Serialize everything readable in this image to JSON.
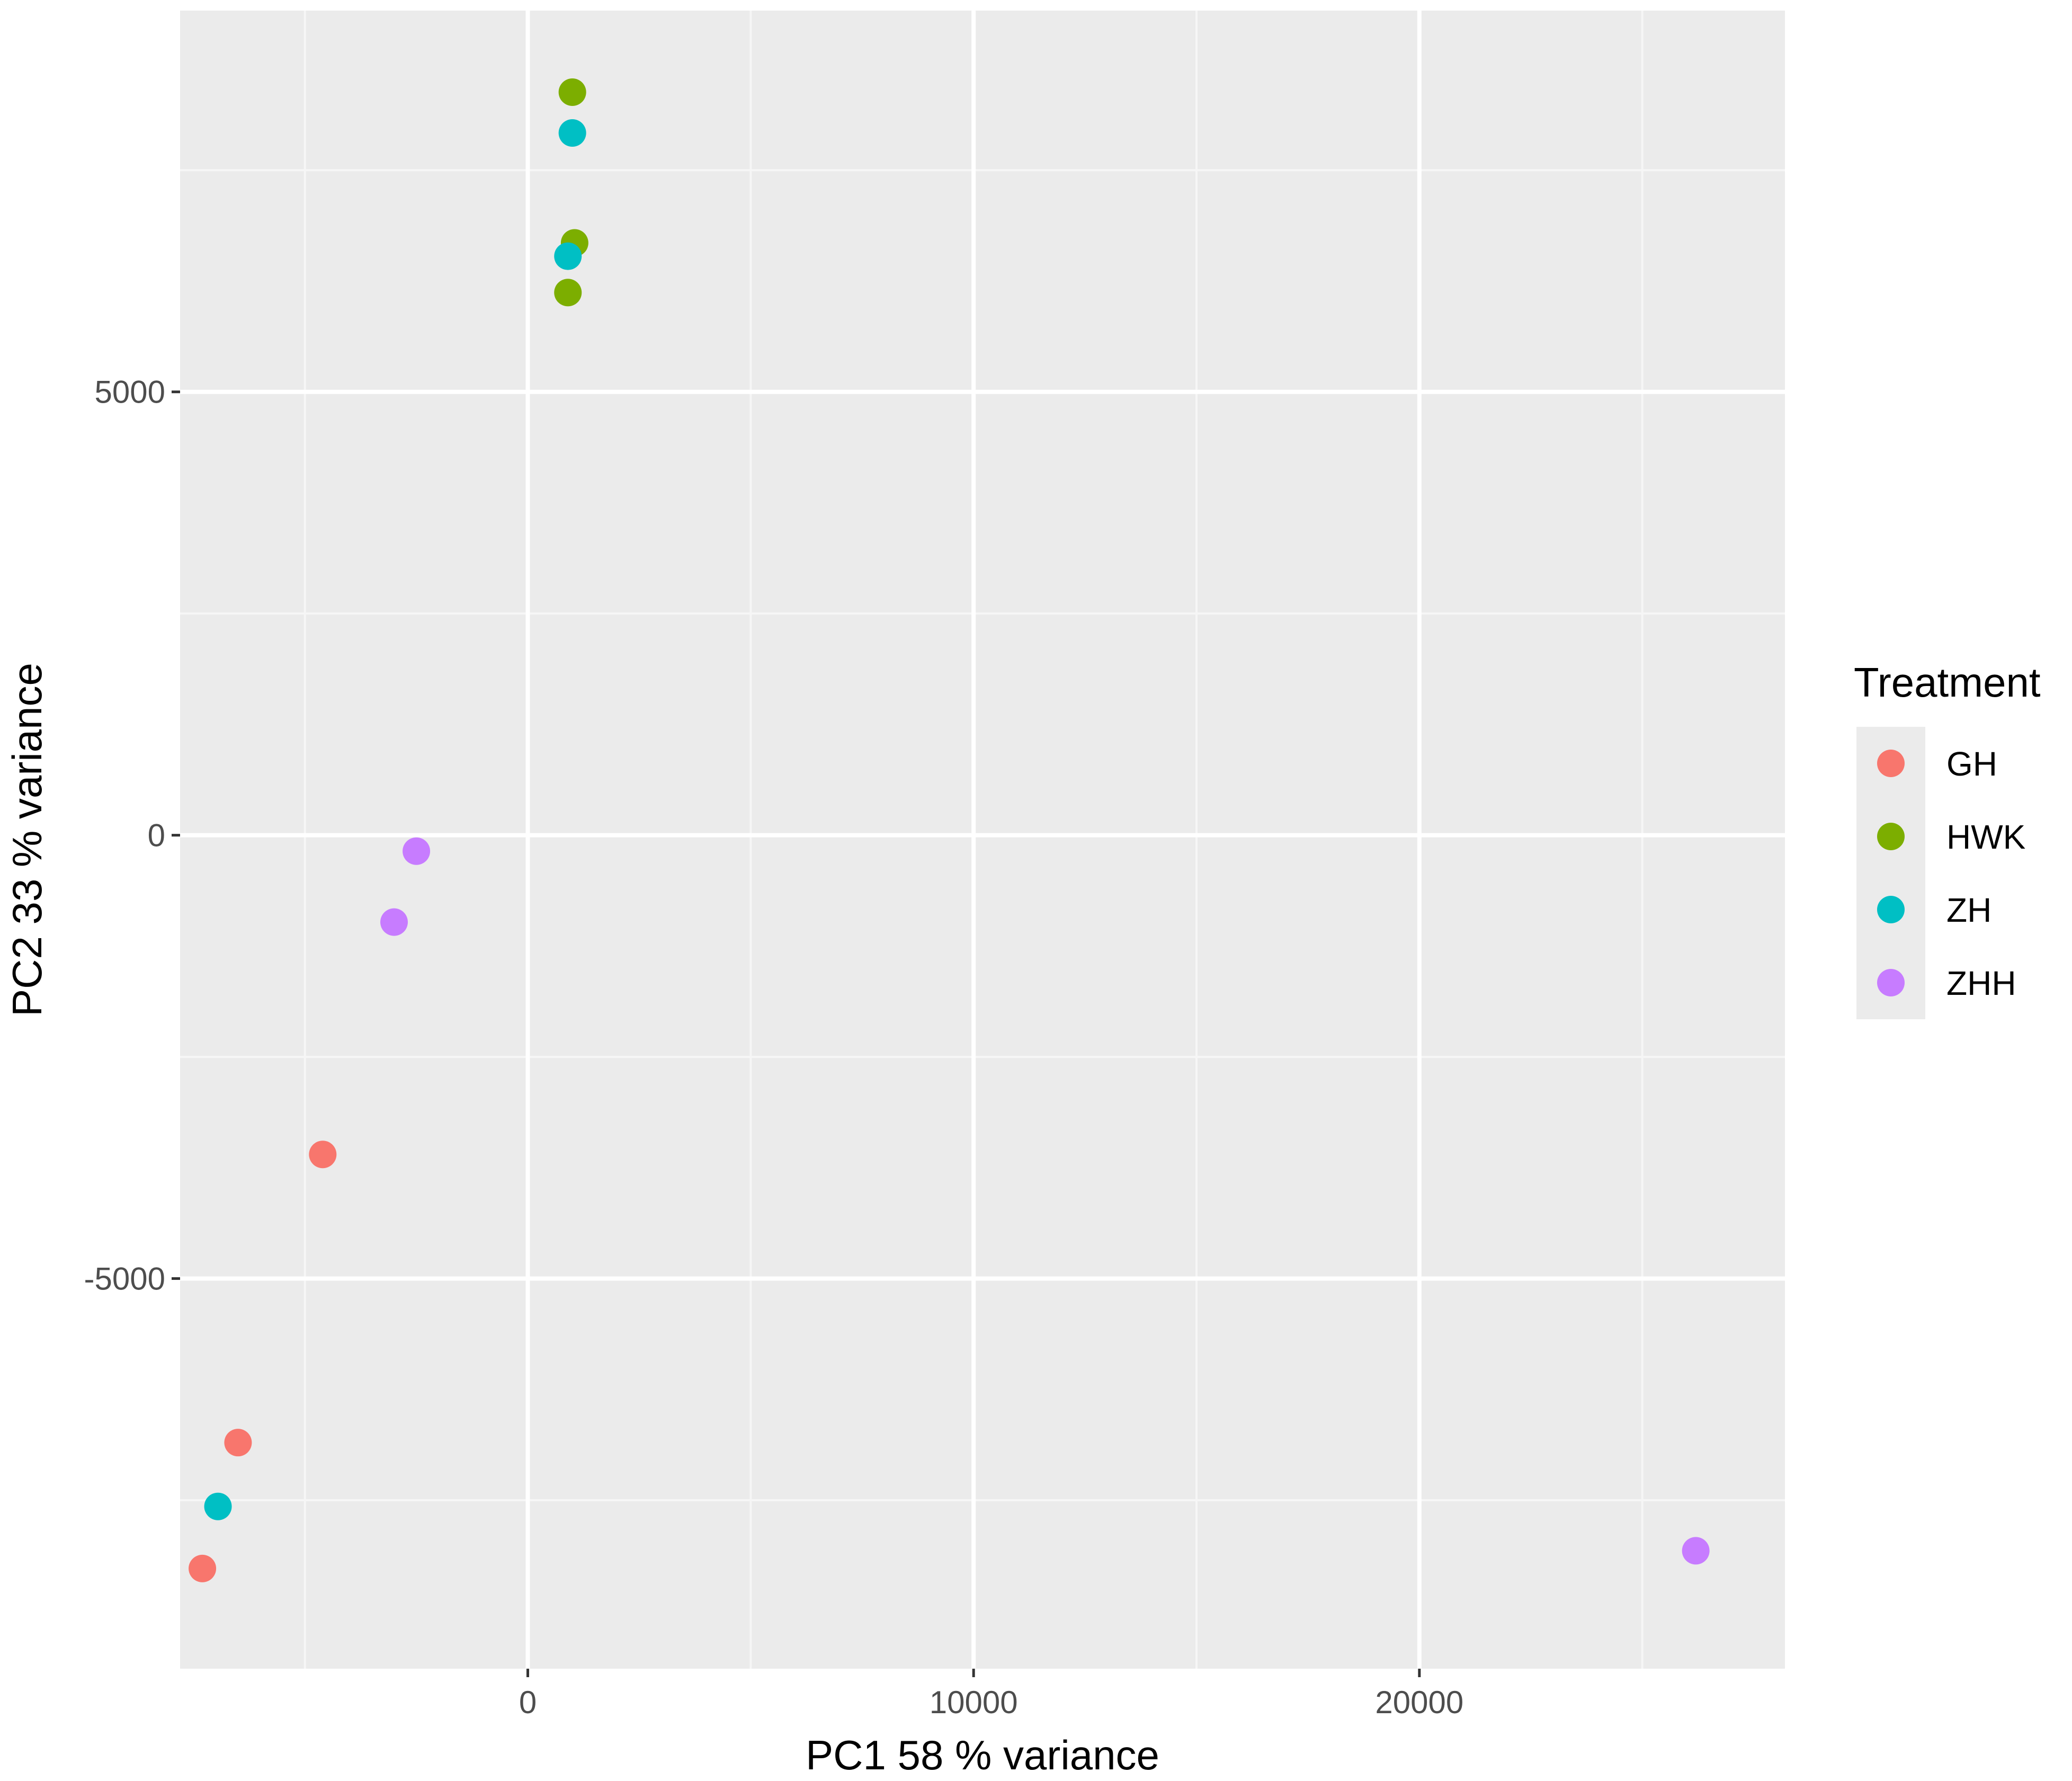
{
  "chart_data": {
    "type": "scatter",
    "xlabel": "PC1  58 % variance",
    "ylabel": "PC2  33 % variance",
    "xlim": [
      -7800,
      28200
    ],
    "ylim": [
      -9400,
      9300
    ],
    "x_ticks": [
      0,
      10000,
      20000
    ],
    "x_tick_labels": [
      "0",
      "10000",
      "20000"
    ],
    "x_minor": [
      -5000,
      5000,
      15000,
      25000
    ],
    "y_ticks": [
      -5000,
      0,
      5000
    ],
    "y_tick_labels": [
      "-5000",
      "0",
      "5000"
    ],
    "y_minor": [
      -7500,
      -2500,
      2500,
      7500
    ],
    "grid": true,
    "panel_color": "#ebebeb",
    "legend": {
      "title": "Treatment",
      "position": "right"
    },
    "series": [
      {
        "name": "GH",
        "color": "#f8766d",
        "points": [
          [
            -4600,
            -3600
          ],
          [
            -6500,
            -6850
          ],
          [
            -7300,
            -8270
          ]
        ]
      },
      {
        "name": "HWK",
        "color": "#7cae00",
        "points": [
          [
            1000,
            8380
          ],
          [
            1050,
            6680
          ],
          [
            900,
            6120
          ]
        ]
      },
      {
        "name": "ZH",
        "color": "#00bfc4",
        "points": [
          [
            1000,
            7920
          ],
          [
            900,
            6530
          ],
          [
            -6950,
            -7570
          ]
        ]
      },
      {
        "name": "ZHH",
        "color": "#c77cff",
        "points": [
          [
            -2500,
            -180
          ],
          [
            -3000,
            -980
          ],
          [
            26200,
            -8070
          ]
        ]
      }
    ]
  }
}
